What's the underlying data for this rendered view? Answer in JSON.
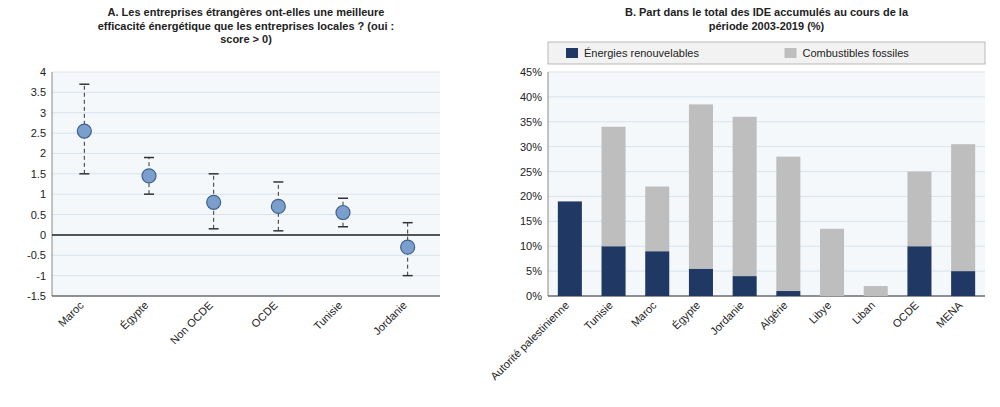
{
  "chart_data": [
    {
      "type": "scatter",
      "title": "A. Les entreprises étrangères ont-elles une meilleure\nefficacité énergétique que les entreprises locales ? (oui :\nscore > 0)",
      "categories": [
        "Maroc",
        "Égypte",
        "Non OCDE",
        "OCDE",
        "Tunisie",
        "Jordanie"
      ],
      "values": [
        2.55,
        1.45,
        0.8,
        0.7,
        0.55,
        -0.3
      ],
      "ci_lower": [
        1.5,
        1.0,
        0.15,
        0.1,
        0.2,
        -1.0
      ],
      "ci_upper": [
        3.7,
        1.9,
        1.5,
        1.3,
        0.9,
        0.3
      ],
      "color": "#7B9FCC",
      "marker": "circle",
      "ylim": [
        -1.5,
        4.0
      ],
      "yticks": [
        -1.5,
        -1,
        -0.5,
        0,
        0.5,
        1,
        1.5,
        2,
        2.5,
        3,
        3.5,
        4
      ],
      "grid": true
    },
    {
      "type": "bar",
      "title": "B. Part dans le total des IDE accumulés au cours de la\npériode 2003-2019 (%)",
      "categories": [
        "Autorité palestinienne",
        "Tunisie",
        "Maroc",
        "Égypte",
        "Jordanie",
        "Algérie",
        "Libye",
        "Liban",
        "OCDE",
        "MENA"
      ],
      "series": [
        {
          "name": "Énergies renouvelables",
          "color": "#1F3864",
          "values": [
            19.0,
            10.0,
            9.0,
            5.5,
            4.0,
            1.0,
            0.0,
            0.0,
            10.0,
            5.0
          ]
        },
        {
          "name": "Combustibles fossiles",
          "color": "#BEBEBE",
          "values": [
            0.0,
            24.0,
            13.0,
            33.0,
            32.0,
            27.0,
            13.5,
            2.0,
            15.0,
            25.5
          ]
        }
      ],
      "stacked": true,
      "legend": "top",
      "ylim": [
        0,
        45
      ],
      "yticks": [
        {
          "value": 0,
          "label": "0%"
        },
        {
          "value": 5,
          "label": "5%"
        },
        {
          "value": 10,
          "label": "10%"
        },
        {
          "value": 15,
          "label": "15%"
        },
        {
          "value": 20,
          "label": "20%"
        },
        {
          "value": 25,
          "label": "25%"
        },
        {
          "value": 30,
          "label": "30%"
        },
        {
          "value": 35,
          "label": "35%"
        },
        {
          "value": 40,
          "label": "40%"
        },
        {
          "value": 45,
          "label": "45%"
        }
      ],
      "grid": true
    }
  ]
}
